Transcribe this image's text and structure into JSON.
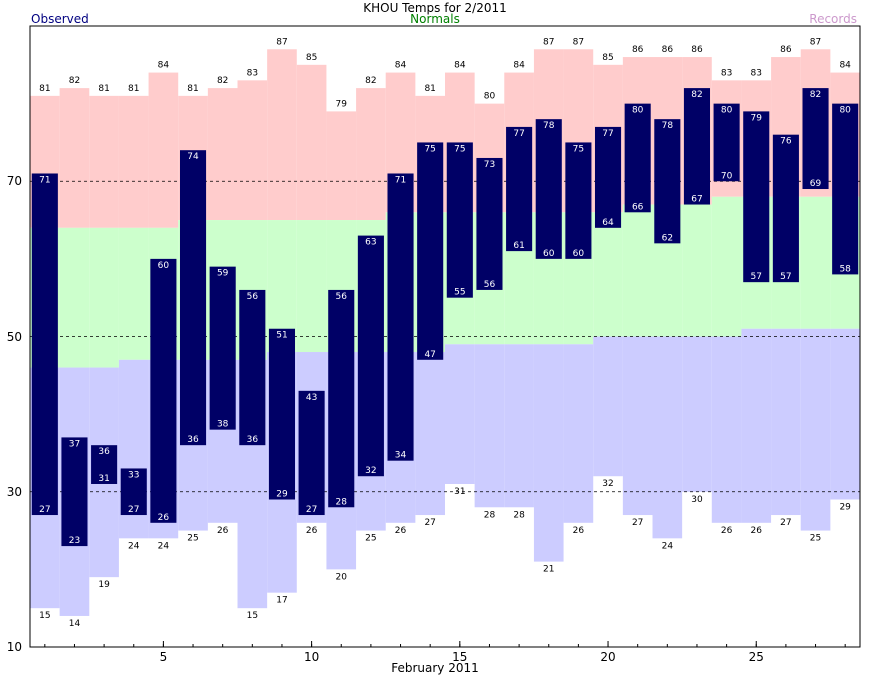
{
  "chart_data": {
    "type": "bar",
    "title": "KHOU Temps for 2/2011",
    "xlabel": "February 2011",
    "legend": {
      "observed": "Observed",
      "normals": "Normals",
      "records": "Records"
    },
    "colors": {
      "observed": "#000066",
      "normals": "#ccffcc",
      "record_high_band": "#ffcccc",
      "record_low_band": "#ccccff",
      "grid": "#000000"
    },
    "ylim": [
      10,
      90
    ],
    "xlim": [
      0.5,
      28.5
    ],
    "y_ticks": [
      10,
      30,
      50,
      70
    ],
    "x_ticks": [
      5,
      10,
      15,
      20,
      25
    ],
    "grid": true,
    "days": [
      1,
      2,
      3,
      4,
      5,
      6,
      7,
      8,
      9,
      10,
      11,
      12,
      13,
      14,
      15,
      16,
      17,
      18,
      19,
      20,
      21,
      22,
      23,
      24,
      25,
      26,
      27,
      28
    ],
    "series": [
      {
        "name": "Observed High",
        "values": [
          71,
          37,
          36,
          33,
          60,
          74,
          59,
          56,
          51,
          43,
          56,
          63,
          71,
          75,
          75,
          73,
          77,
          78,
          75,
          77,
          80,
          78,
          82,
          80,
          79,
          76,
          82,
          80
        ]
      },
      {
        "name": "Observed Low",
        "values": [
          27,
          23,
          31,
          27,
          26,
          36,
          38,
          36,
          29,
          27,
          28,
          32,
          34,
          47,
          55,
          56,
          61,
          60,
          60,
          64,
          66,
          62,
          67,
          70,
          57,
          57,
          69,
          58
        ]
      },
      {
        "name": "Record High",
        "values": [
          81,
          82,
          81,
          81,
          84,
          81,
          82,
          83,
          87,
          85,
          79,
          82,
          84,
          81,
          84,
          80,
          84,
          87,
          87,
          85,
          86,
          86,
          86,
          83,
          83,
          86,
          87,
          84
        ]
      },
      {
        "name": "Record Low",
        "values": [
          15,
          14,
          19,
          24,
          24,
          25,
          26,
          15,
          17,
          26,
          20,
          25,
          26,
          27,
          31,
          28,
          28,
          21,
          26,
          32,
          27,
          24,
          30,
          26,
          26,
          27,
          25,
          29
        ]
      },
      {
        "name": "Normal High",
        "values": [
          64,
          64,
          64,
          64,
          64,
          65,
          65,
          65,
          65,
          65,
          65,
          65,
          66,
          66,
          66,
          66,
          66,
          66,
          66,
          66,
          67,
          67,
          67,
          68,
          68,
          68,
          68,
          68
        ]
      },
      {
        "name": "Normal Low",
        "values": [
          46,
          46,
          46,
          47,
          47,
          47,
          47,
          47,
          48,
          48,
          48,
          48,
          48,
          48,
          49,
          49,
          49,
          49,
          49,
          50,
          50,
          50,
          50,
          50,
          51,
          51,
          51,
          51
        ]
      }
    ]
  }
}
